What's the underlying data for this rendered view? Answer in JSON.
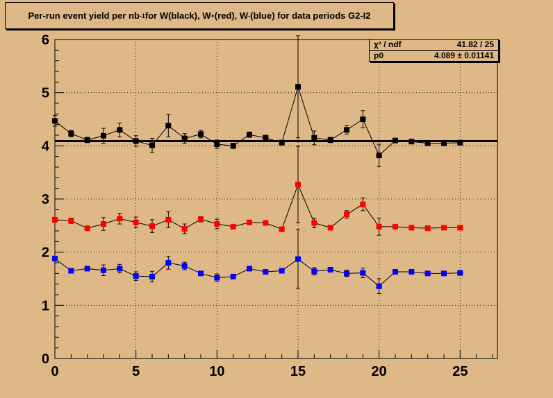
{
  "title": {
    "prefix": "Per-run event yield per nb",
    "sup1": "-1",
    "mid1": " for W(black), W",
    "sup2": "+",
    "mid2": "(red), W",
    "sup3": "-",
    "suffix": "(blue) for data periods G2-I2"
  },
  "stats": {
    "row1_label": "χ² / ndf",
    "row1_value": "41.82 / 25",
    "row2_label": "p0",
    "row2_value": "4.089 ± 0.01141"
  },
  "colors": {
    "background": "#deb887",
    "black_series": "#000000",
    "red_series": "#ff0000",
    "blue_series": "#0000ff"
  },
  "chart_data": {
    "type": "scatter",
    "xlim": [
      0,
      27.3
    ],
    "ylim": [
      0,
      6
    ],
    "x_ticks": [
      0,
      5,
      10,
      15,
      20,
      25
    ],
    "y_ticks": [
      0,
      1,
      2,
      3,
      4,
      5,
      6
    ],
    "grid": true,
    "fit_line": {
      "y": 4.089,
      "x_range": [
        0,
        27.3
      ]
    },
    "series": [
      {
        "color": "#000000",
        "x": [
          0,
          1,
          2,
          3,
          4,
          5,
          6,
          7,
          8,
          9,
          10,
          11,
          12,
          13,
          14,
          15,
          16,
          17,
          18,
          19,
          20,
          21,
          22,
          23,
          24,
          25
        ],
        "y": [
          4.47,
          4.23,
          4.11,
          4.19,
          4.3,
          4.09,
          4.01,
          4.38,
          4.14,
          4.22,
          4.03,
          4.0,
          4.21,
          4.15,
          4.06,
          5.11,
          4.15,
          4.11,
          4.3,
          4.5,
          3.82,
          4.1,
          4.08,
          4.05,
          4.05,
          4.06
        ],
        "err": [
          0.1,
          0.06,
          0.05,
          0.14,
          0.13,
          0.1,
          0.13,
          0.21,
          0.09,
          0.07,
          0.08,
          0.05,
          0.05,
          0.05,
          0.04,
          0.96,
          0.13,
          0.05,
          0.08,
          0.16,
          0.21,
          0.04,
          0.04,
          0.04,
          0.04,
          0.04
        ]
      },
      {
        "color": "#ff0000",
        "x": [
          0,
          1,
          2,
          3,
          4,
          5,
          6,
          7,
          8,
          9,
          10,
          11,
          12,
          13,
          14,
          15,
          16,
          17,
          18,
          19,
          20,
          21,
          22,
          23,
          24,
          25
        ],
        "y": [
          2.61,
          2.59,
          2.45,
          2.53,
          2.63,
          2.56,
          2.49,
          2.61,
          2.44,
          2.62,
          2.53,
          2.48,
          2.56,
          2.55,
          2.43,
          3.27,
          2.55,
          2.46,
          2.71,
          2.9,
          2.48,
          2.48,
          2.46,
          2.45,
          2.46,
          2.46
        ],
        "err": [
          0.04,
          0.05,
          0.04,
          0.12,
          0.1,
          0.1,
          0.12,
          0.15,
          0.09,
          0.05,
          0.09,
          0.04,
          0.04,
          0.04,
          0.04,
          0.72,
          0.09,
          0.04,
          0.07,
          0.12,
          0.16,
          0.03,
          0.03,
          0.03,
          0.03,
          0.03
        ]
      },
      {
        "color": "#0000ff",
        "x": [
          0,
          1,
          2,
          3,
          4,
          5,
          6,
          7,
          8,
          9,
          10,
          11,
          12,
          13,
          14,
          15,
          16,
          17,
          18,
          19,
          20,
          21,
          22,
          23,
          24,
          25
        ],
        "y": [
          1.88,
          1.65,
          1.69,
          1.66,
          1.69,
          1.55,
          1.54,
          1.8,
          1.74,
          1.6,
          1.52,
          1.54,
          1.69,
          1.63,
          1.65,
          1.87,
          1.64,
          1.67,
          1.6,
          1.61,
          1.36,
          1.63,
          1.63,
          1.6,
          1.6,
          1.61
        ],
        "err": [
          0.04,
          0.04,
          0.04,
          0.1,
          0.08,
          0.08,
          0.1,
          0.12,
          0.07,
          0.04,
          0.07,
          0.04,
          0.04,
          0.04,
          0.04,
          0.55,
          0.07,
          0.04,
          0.06,
          0.09,
          0.14,
          0.03,
          0.03,
          0.03,
          0.03,
          0.03
        ]
      }
    ]
  }
}
